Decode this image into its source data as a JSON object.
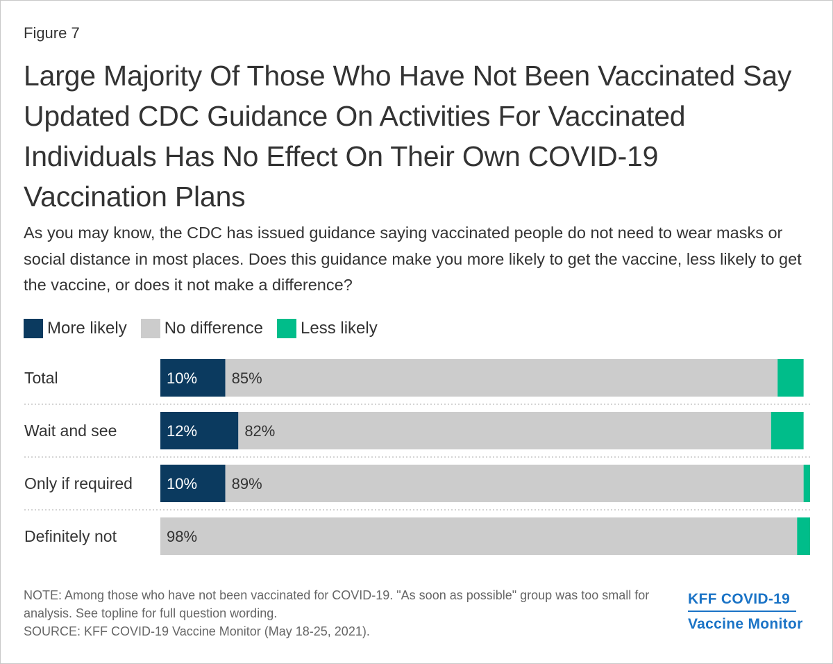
{
  "figure_label": "Figure 7",
  "title": "Large Majority Of Those Who Have Not Been Vaccinated Say Updated CDC Guidance On Activities For Vaccinated Individuals Has No Effect On Their Own COVID-19 Vaccination Plans",
  "subtitle": "As you may know, the CDC has issued guidance saying vaccinated people do not need to wear masks or social distance in most places. Does this guidance make you more likely to get the vaccine, less likely to get the vaccine, or does it not make a difference?",
  "legend": [
    {
      "label": "More likely",
      "color": "#0b3a5f"
    },
    {
      "label": "No difference",
      "color": "#cccccc"
    },
    {
      "label": "Less likely",
      "color": "#00bd8a"
    }
  ],
  "chart_data": {
    "type": "bar",
    "orientation": "horizontal",
    "stacked": true,
    "categories": [
      "Total",
      "Wait and see",
      "Only if required",
      "Definitely not"
    ],
    "series": [
      {
        "name": "More likely",
        "values": [
          10,
          12,
          10,
          0
        ],
        "labels": [
          "10%",
          "12%",
          "10%",
          ""
        ],
        "color": "#0b3a5f"
      },
      {
        "name": "No difference",
        "values": [
          85,
          82,
          89,
          98
        ],
        "labels": [
          "85%",
          "82%",
          "89%",
          "98%"
        ],
        "color": "#cccccc"
      },
      {
        "name": "Less likely",
        "values": [
          4,
          5,
          1,
          2
        ],
        "labels": [
          "",
          "",
          "",
          ""
        ],
        "color": "#00bd8a"
      }
    ],
    "xlim": [
      0,
      100
    ],
    "legend_position": "top-left"
  },
  "note": "NOTE: Among those who have not been vaccinated for COVID-19. \"As soon as possible\" group was too small for analysis. See topline for full question wording.",
  "source": "SOURCE: KFF COVID-19 Vaccine Monitor (May 18-25, 2021).",
  "brand": {
    "line1": "KFF COVID-19",
    "line2": "Vaccine Monitor",
    "color": "#1a73c6"
  }
}
